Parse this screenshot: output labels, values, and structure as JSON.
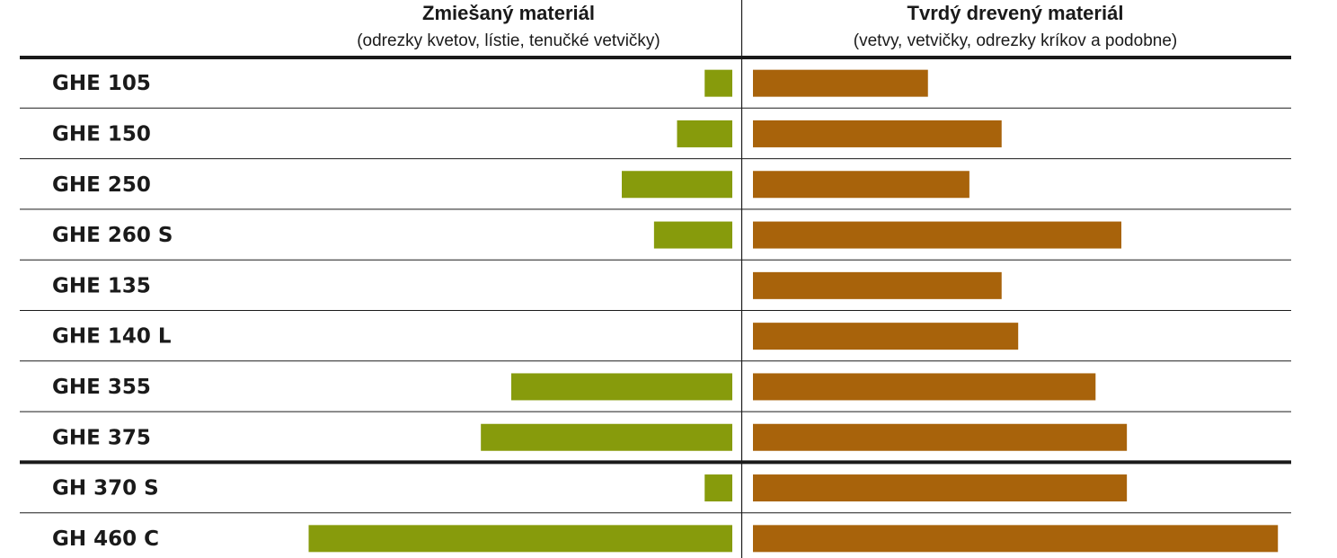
{
  "chart_data": {
    "type": "bar",
    "layout": "diverging-horizontal",
    "grid": false,
    "legend": "none",
    "left_panel": {
      "title": "Zmiešaný materiál",
      "subtitle": "(odrezky kvetov, lístie, tenučké vetvičky)",
      "color": "#879b0c"
    },
    "right_panel": {
      "title": "Tvrdý drevený materiál",
      "subtitle": "(vetvy, vetvičky, odrezky kríkov a podobne)",
      "color": "#a8630b"
    },
    "categories": [
      "GHE 105",
      "GHE 150",
      "GHE 250",
      "GHE 260 S",
      "GHE 135",
      "GHE 140 L",
      "GHE 355",
      "GHE 375",
      "GH 370 S",
      "GH 460 C"
    ],
    "series": [
      {
        "values": [
          0.3,
          0.6,
          1.2,
          0.85,
          0,
          0,
          2.4,
          2.73,
          0.3,
          4.6
        ]
      },
      {
        "values": [
          1.9,
          2.7,
          2.35,
          4.0,
          2.7,
          2.88,
          3.72,
          4.06,
          4.06,
          5.7
        ]
      }
    ],
    "group_separator_after_index": 7
  }
}
